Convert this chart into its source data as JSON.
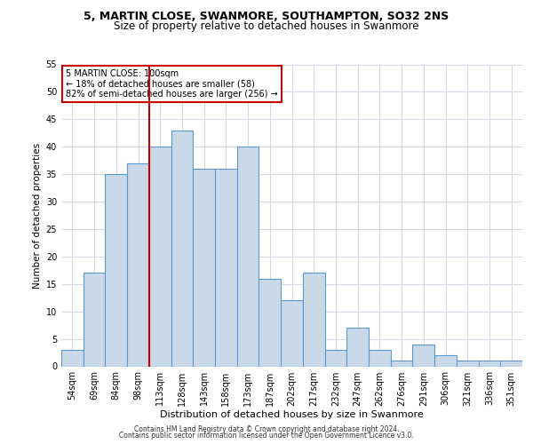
{
  "title1": "5, MARTIN CLOSE, SWANMORE, SOUTHAMPTON, SO32 2NS",
  "title2": "Size of property relative to detached houses in Swanmore",
  "xlabel": "Distribution of detached houses by size in Swanmore",
  "ylabel": "Number of detached properties",
  "categories": [
    "54sqm",
    "69sqm",
    "84sqm",
    "98sqm",
    "113sqm",
    "128sqm",
    "143sqm",
    "158sqm",
    "173sqm",
    "187sqm",
    "202sqm",
    "217sqm",
    "232sqm",
    "247sqm",
    "262sqm",
    "276sqm",
    "291sqm",
    "306sqm",
    "321sqm",
    "336sqm",
    "351sqm"
  ],
  "values": [
    3,
    17,
    35,
    37,
    40,
    43,
    36,
    36,
    40,
    16,
    12,
    17,
    3,
    7,
    3,
    1,
    4,
    2,
    1,
    1,
    1
  ],
  "bar_color": "#c9d9e8",
  "bar_edge_color": "#5b9bd5",
  "vline_x_index": 3.5,
  "annotation_text": "5 MARTIN CLOSE: 100sqm\n← 18% of detached houses are smaller (58)\n82% of semi-detached houses are larger (256) →",
  "annotation_box_color": "#ffffff",
  "annotation_box_edge_color": "#cc0000",
  "vline_color": "#cc0000",
  "ylim": [
    0,
    55
  ],
  "yticks": [
    0,
    5,
    10,
    15,
    20,
    25,
    30,
    35,
    40,
    45,
    50,
    55
  ],
  "footer1": "Contains HM Land Registry data © Crown copyright and database right 2024.",
  "footer2": "Contains public sector information licensed under the Open Government Licence v3.0.",
  "background_color": "#ffffff",
  "grid_color": "#d0d8e8",
  "title1_fontsize": 9,
  "title2_fontsize": 8.5,
  "ylabel_fontsize": 7.5,
  "xlabel_fontsize": 8,
  "tick_fontsize": 7,
  "annotation_fontsize": 7,
  "footer_fontsize": 5.5
}
